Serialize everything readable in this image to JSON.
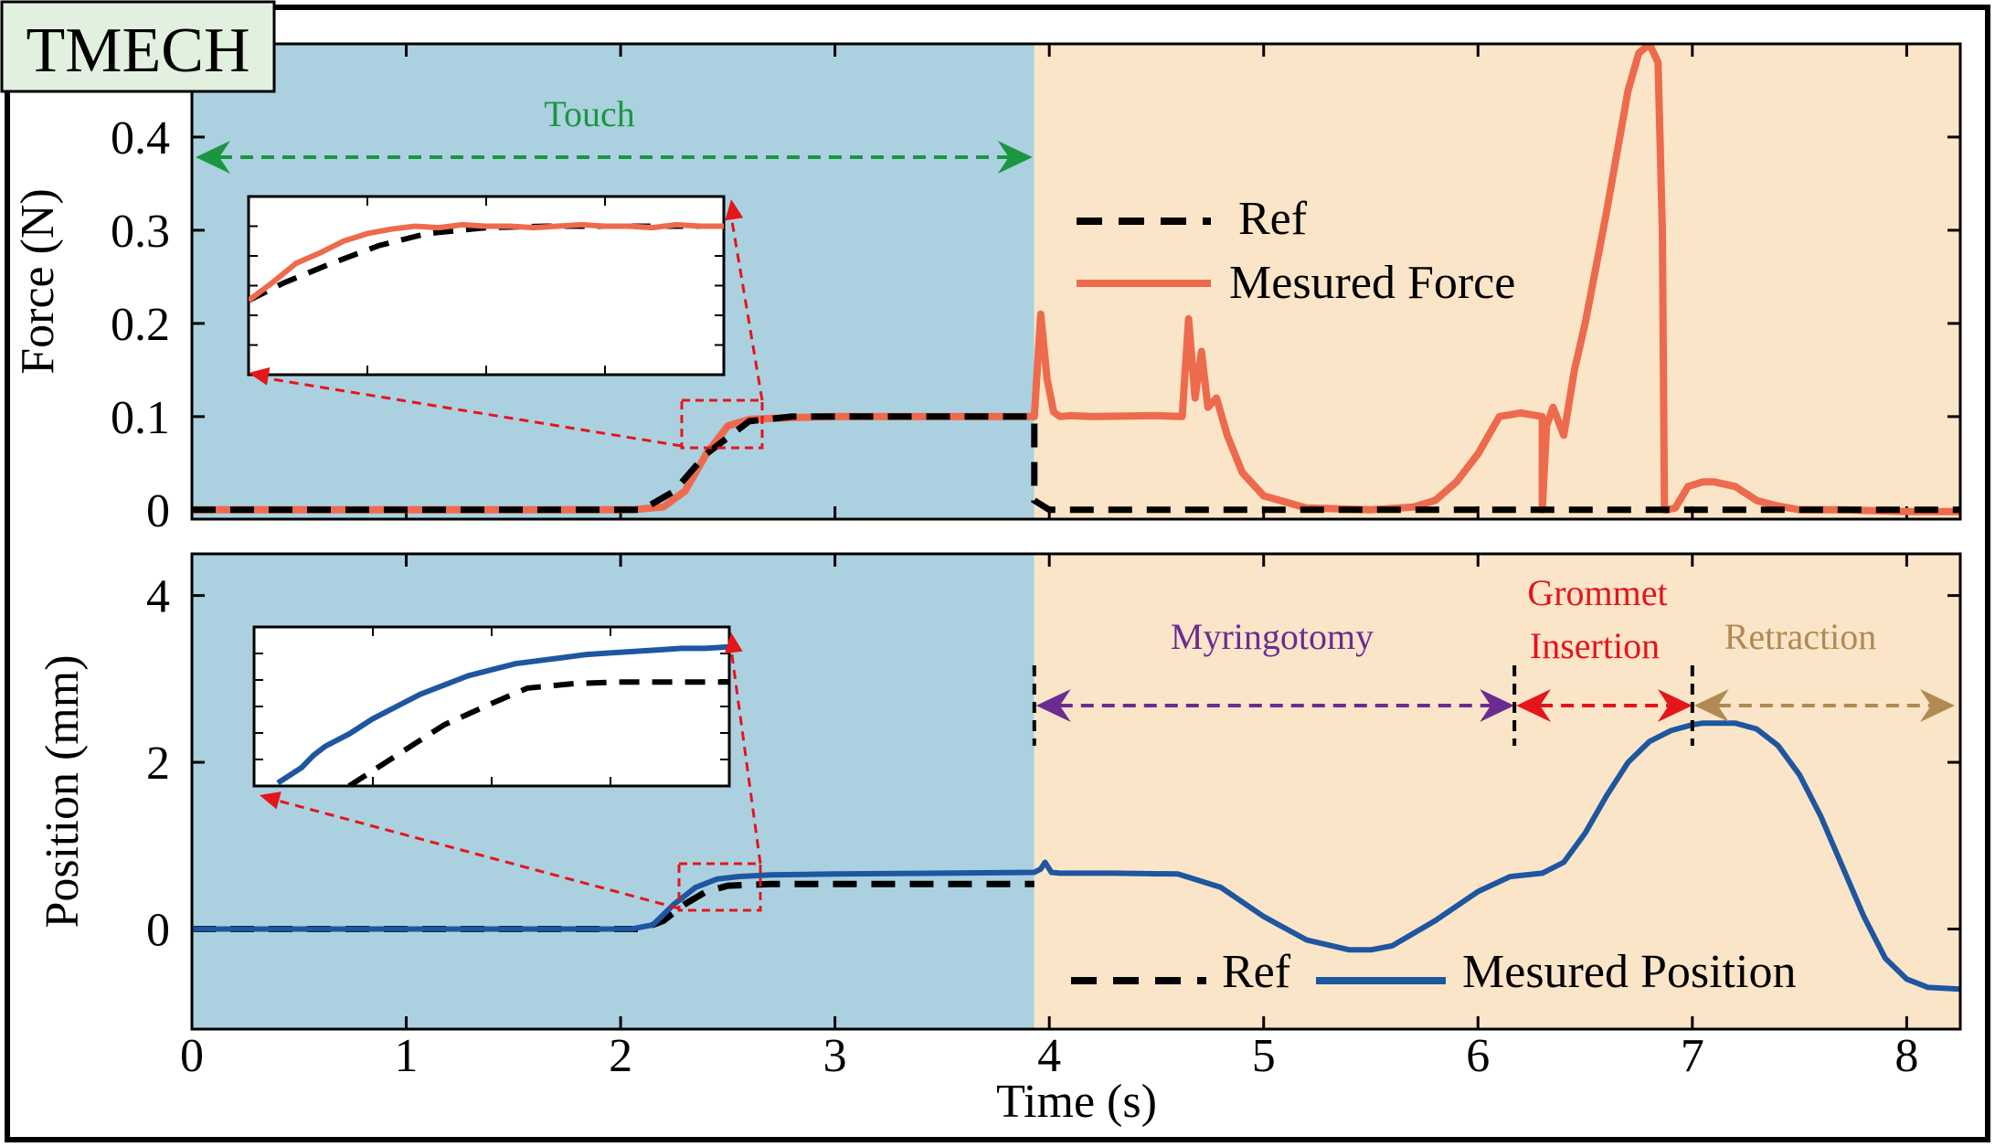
{
  "badge": {
    "label": "TMECH"
  },
  "colors": {
    "touch_bg": "#abd1e0",
    "procedure_bg": "#fbe5c8",
    "force": "#ee6a4d",
    "position": "#1e56a0",
    "ref": "#000000",
    "touch": "#1a9640",
    "myringotomy": "#6b2c91",
    "grommet": "#e4151b",
    "retraction": "#b08a52",
    "zoom": "#e4151b",
    "badge_bg": "#e2f0df"
  },
  "chart_data": [
    {
      "type": "line",
      "panel": "force",
      "ylabel": "Force (N)",
      "xlim": [
        0,
        8.25
      ],
      "ylim": [
        -0.01,
        0.5
      ],
      "yticks": [
        0,
        0.1,
        0.2,
        0.3,
        0.4
      ],
      "ytick_labels": [
        "0",
        "0.1",
        "0.2",
        "0.3",
        "0.4"
      ],
      "legend": {
        "position": "center-right",
        "entries": [
          "Ref",
          "Mesured Force"
        ]
      },
      "annotations": [
        {
          "label": "Touch",
          "x_start": 0,
          "x_end": 3.93
        }
      ],
      "series": [
        {
          "name": "Ref",
          "style": "dashed",
          "x": [
            0,
            2.1,
            2.25,
            2.4,
            2.6,
            2.8,
            3.0,
            3.93,
            3.93,
            4.0,
            8.25
          ],
          "y": [
            0,
            0,
            0.02,
            0.06,
            0.095,
            0.1,
            0.1,
            0.1,
            0.01,
            0,
            0
          ]
        },
        {
          "name": "Mesured Force",
          "style": "solid",
          "x": [
            0,
            2.05,
            2.2,
            2.3,
            2.4,
            2.5,
            2.6,
            2.8,
            3.0,
            3.5,
            3.93,
            3.96,
            3.99,
            4.02,
            4.05,
            4.1,
            4.2,
            4.5,
            4.62,
            4.65,
            4.68,
            4.71,
            4.74,
            4.78,
            4.83,
            4.9,
            5.0,
            5.2,
            5.5,
            5.7,
            5.8,
            5.9,
            6.0,
            6.1,
            6.2,
            6.3,
            6.3,
            6.32,
            6.35,
            6.4,
            6.45,
            6.5,
            6.55,
            6.6,
            6.7,
            6.75,
            6.8,
            6.84,
            6.86,
            6.87,
            6.88,
            6.92,
            6.98,
            7.05,
            7.1,
            7.2,
            7.3,
            7.4,
            7.5,
            7.7,
            8.0,
            8.25
          ],
          "y": [
            0.0,
            0.0,
            0.003,
            0.02,
            0.06,
            0.09,
            0.097,
            0.099,
            0.1,
            0.1,
            0.1,
            0.21,
            0.14,
            0.105,
            0.1,
            0.101,
            0.1,
            0.101,
            0.1,
            0.205,
            0.12,
            0.17,
            0.11,
            0.12,
            0.08,
            0.04,
            0.015,
            0.002,
            0.0,
            0.003,
            0.01,
            0.03,
            0.06,
            0.1,
            0.104,
            0.1,
            0.0,
            0.09,
            0.11,
            0.08,
            0.15,
            0.2,
            0.26,
            0.32,
            0.45,
            0.49,
            0.5,
            0.48,
            0.3,
            0.0,
            0.0,
            0.002,
            0.025,
            0.03,
            0.03,
            0.025,
            0.01,
            0.004,
            0.0,
            0.0,
            -0.002,
            -0.002
          ]
        }
      ],
      "inset": {
        "xlim": [
          2.25,
          2.65
        ],
        "ylim": [
          0.0,
          0.12
        ],
        "ref": {
          "x": [
            2.25,
            2.28,
            2.32,
            2.36,
            2.4,
            2.45,
            2.5,
            2.55,
            2.6,
            2.65
          ],
          "y": [
            0.05,
            0.062,
            0.075,
            0.087,
            0.095,
            0.099,
            0.1,
            0.1,
            0.1,
            0.1
          ]
        },
        "measured": {
          "x": [
            2.25,
            2.27,
            2.29,
            2.31,
            2.33,
            2.35,
            2.37,
            2.39,
            2.41,
            2.43,
            2.45,
            2.47,
            2.49,
            2.51,
            2.53,
            2.55,
            2.57,
            2.59,
            2.61,
            2.63,
            2.65
          ],
          "y": [
            0.05,
            0.062,
            0.075,
            0.082,
            0.09,
            0.095,
            0.098,
            0.1,
            0.099,
            0.101,
            0.1,
            0.1,
            0.099,
            0.1,
            0.101,
            0.1,
            0.1,
            0.099,
            0.101,
            0.1,
            0.1
          ]
        }
      }
    },
    {
      "type": "line",
      "panel": "position",
      "ylabel": "Position (mm)",
      "xlabel": "Time (s)",
      "xlim": [
        0,
        8.25
      ],
      "ylim": [
        -1.2,
        4.5
      ],
      "xticks": [
        0,
        1,
        2,
        3,
        4,
        5,
        6,
        7,
        8
      ],
      "xtick_labels": [
        "0",
        "1",
        "2",
        "3",
        "4",
        "5",
        "6",
        "7",
        "8"
      ],
      "yticks": [
        0,
        2,
        4
      ],
      "ytick_labels": [
        "0",
        "2",
        "4"
      ],
      "legend": {
        "position": "bottom-right",
        "entries": [
          "Ref",
          "Mesured Position"
        ]
      },
      "annotations": [
        {
          "label": "Myringotomy",
          "x_start": 3.93,
          "x_end": 6.17
        },
        {
          "label": "Grommet",
          "label2": "Insertion",
          "x_start": 6.17,
          "x_end": 7.0
        },
        {
          "label": "Retraction",
          "x_start": 7.0,
          "x_end": 8.25
        }
      ],
      "series": [
        {
          "name": "Ref",
          "style": "dashed",
          "x": [
            0,
            2.1,
            2.2,
            2.3,
            2.4,
            2.5,
            2.7,
            3.0,
            3.93
          ],
          "y": [
            0,
            0,
            0.1,
            0.3,
            0.45,
            0.52,
            0.54,
            0.54,
            0.54
          ]
        },
        {
          "name": "Mesured Position",
          "style": "solid",
          "x": [
            0,
            2.05,
            2.15,
            2.25,
            2.35,
            2.45,
            2.55,
            2.7,
            3.0,
            3.5,
            3.93,
            3.96,
            3.98,
            4.01,
            4.05,
            4.3,
            4.6,
            4.8,
            5.0,
            5.2,
            5.4,
            5.5,
            5.6,
            5.8,
            6.0,
            6.15,
            6.3,
            6.4,
            6.5,
            6.6,
            6.7,
            6.8,
            6.9,
            7.0,
            7.05,
            7.2,
            7.3,
            7.4,
            7.5,
            7.6,
            7.7,
            7.8,
            7.9,
            8.0,
            8.1,
            8.25
          ],
          "y": [
            0,
            0,
            0.05,
            0.3,
            0.5,
            0.6,
            0.63,
            0.65,
            0.66,
            0.67,
            0.68,
            0.72,
            0.8,
            0.68,
            0.67,
            0.67,
            0.66,
            0.5,
            0.15,
            -0.13,
            -0.25,
            -0.25,
            -0.2,
            0.1,
            0.45,
            0.63,
            0.67,
            0.8,
            1.15,
            1.6,
            2.0,
            2.25,
            2.38,
            2.45,
            2.47,
            2.47,
            2.4,
            2.2,
            1.85,
            1.35,
            0.75,
            0.15,
            -0.35,
            -0.6,
            -0.7,
            -0.72
          ]
        }
      ],
      "inset": {
        "xlim": [
          2.25,
          2.65
        ],
        "ylim": [
          0.2,
          0.72
        ],
        "ref": {
          "x": [
            2.33,
            2.37,
            2.41,
            2.45,
            2.48,
            2.52,
            2.56,
            2.6,
            2.65
          ],
          "y": [
            0.2,
            0.3,
            0.4,
            0.47,
            0.52,
            0.535,
            0.54,
            0.54,
            0.54
          ]
        },
        "measured": {
          "x": [
            2.27,
            2.29,
            2.3,
            2.31,
            2.33,
            2.35,
            2.37,
            2.39,
            2.41,
            2.43,
            2.45,
            2.47,
            2.49,
            2.51,
            2.53,
            2.55,
            2.57,
            2.59,
            2.61,
            2.63,
            2.65
          ],
          "y": [
            0.21,
            0.26,
            0.3,
            0.33,
            0.37,
            0.42,
            0.46,
            0.5,
            0.53,
            0.56,
            0.58,
            0.6,
            0.61,
            0.62,
            0.63,
            0.635,
            0.64,
            0.645,
            0.65,
            0.65,
            0.655
          ]
        }
      }
    }
  ]
}
